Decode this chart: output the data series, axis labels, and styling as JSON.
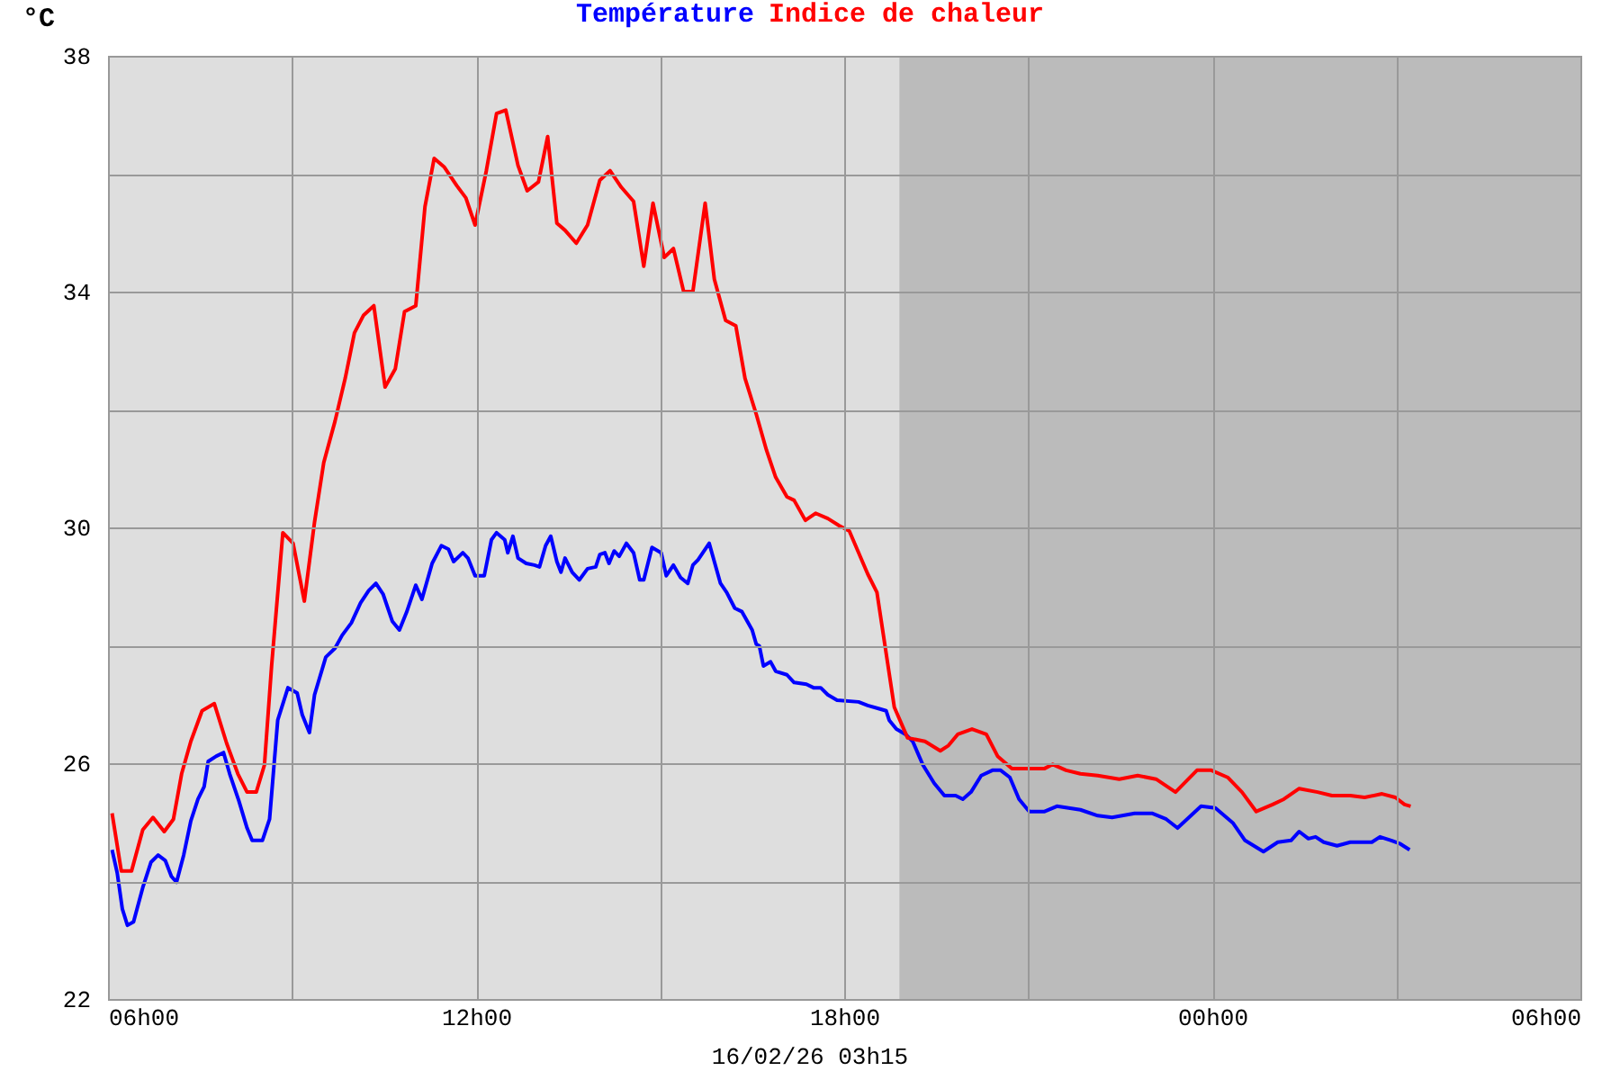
{
  "chart_data": {
    "type": "line",
    "ylabel": "°C",
    "annotations": [
      "16/02/26 03h15"
    ],
    "legend": "top",
    "grid": true,
    "line_style": "solid",
    "marker": "none",
    "xlim": [
      "--02-15T06:00",
      "--02-16T06:00"
    ],
    "xticks": [
      {
        "value": "--02-15T06:00",
        "label": "06h00"
      },
      {
        "value": "--02-15T09:00",
        "label": null
      },
      {
        "value": "--02-15T12:00",
        "label": "12h00"
      },
      {
        "value": "--02-15T15:00",
        "label": null
      },
      {
        "value": "--02-15T18:00",
        "label": "18h00"
      },
      {
        "value": "--02-15T21:00",
        "label": null
      },
      {
        "value": "--02-16T00:00",
        "label": "00h00"
      },
      {
        "value": "--02-16T03:00",
        "label": null
      },
      {
        "value": "--02-16T06:00",
        "label": "06h00"
      }
    ],
    "ylim": [
      22,
      38
    ],
    "yticks": [
      22,
      {
        "value": 24,
        "label": null
      },
      26,
      {
        "value": 28,
        "label": null
      },
      30,
      {
        "value": 32,
        "label": null
      },
      34,
      {
        "value": 36,
        "label": null
      },
      38
    ],
    "bands": [
      {
        "axis": "x",
        "from": "--02-15T18:54",
        "to": "--02-16T06:00",
        "color": "#bbbbbb"
      }
    ],
    "series": [
      {
        "name": "Température",
        "color": "#0000ff",
        "x": [
          "--02-15T06:04",
          "--02-15T06:09",
          "--02-15T06:14",
          "--02-15T06:19",
          "--02-15T06:25",
          "--02-15T06:34",
          "--02-15T06:42",
          "--02-15T06:49",
          "--02-15T06:56",
          "--02-15T07:02",
          "--02-15T07:07",
          "--02-15T07:14",
          "--02-15T07:21",
          "--02-15T07:28",
          "--02-15T07:34",
          "--02-15T07:38",
          "--02-15T07:46",
          "--02-15T07:53",
          "--02-15T07:59",
          "--02-15T08:08",
          "--02-15T08:16",
          "--02-15T08:21",
          "--02-15T08:31",
          "--02-15T08:38",
          "--02-15T08:46",
          "--02-15T08:56",
          "--02-15T09:05",
          "--02-15T09:10",
          "--02-15T09:17",
          "--02-15T09:22",
          "--02-15T09:33",
          "--02-15T09:42",
          "--02-15T09:49",
          "--02-15T09:58",
          "--02-15T10:07",
          "--02-15T10:15",
          "--02-15T10:22",
          "--02-15T10:29",
          "--02-15T10:38",
          "--02-15T10:45",
          "--02-15T10:52",
          "--02-15T11:01",
          "--02-15T11:07",
          "--02-15T11:17",
          "--02-15T11:26",
          "--02-15T11:33",
          "--02-15T11:38",
          "--02-15T11:47",
          "--02-15T11:52",
          "--02-15T11:59",
          "--02-15T12:08",
          "--02-15T12:15",
          "--02-15T12:20",
          "--02-15T12:28",
          "--02-15T12:31",
          "--02-15T12:36",
          "--02-15T12:41",
          "--02-15T12:49",
          "--02-15T12:57",
          "--02-15T13:02",
          "--02-15T13:08",
          "--02-15T13:13",
          "--02-15T13:19",
          "--02-15T13:23",
          "--02-15T13:27",
          "--02-15T13:34",
          "--02-15T13:41",
          "--02-15T13:49",
          "--02-15T13:57",
          "--02-15T14:01",
          "--02-15T14:06",
          "--02-15T14:10",
          "--02-15T14:15",
          "--02-15T14:20",
          "--02-15T14:27",
          "--02-15T14:34",
          "--02-15T14:40",
          "--02-15T14:44",
          "--02-15T14:52",
          "--02-15T15:01",
          "--02-15T15:06",
          "--02-15T15:13",
          "--02-15T15:20",
          "--02-15T15:27",
          "--02-15T15:32",
          "--02-15T15:37",
          "--02-15T15:48",
          "--02-15T15:59",
          "--02-15T16:05",
          "--02-15T16:13",
          "--02-15T16:20",
          "--02-15T16:30",
          "--02-15T16:34",
          "--02-15T16:37",
          "--02-15T16:41",
          "--02-15T16:48",
          "--02-15T16:53",
          "--02-15T17:04",
          "--02-15T17:11",
          "--02-15T17:23",
          "--02-15T17:30",
          "--02-15T17:37",
          "--02-15T17:44",
          "--02-15T17:53",
          "--02-15T18:14",
          "--02-15T18:23",
          "--02-15T18:35",
          "--02-15T18:41",
          "--02-15T18:44",
          "--02-15T18:51",
          "--02-15T19:00",
          "--02-15T19:07",
          "--02-15T19:17",
          "--02-15T19:28",
          "--02-15T19:38",
          "--02-15T19:49",
          "--02-15T19:56",
          "--02-15T20:04",
          "--02-15T20:14",
          "--02-15T20:25",
          "--02-15T20:33",
          "--02-15T20:42",
          "--02-15T20:51",
          "--02-15T21:01",
          "--02-15T21:16",
          "--02-15T21:28",
          "--02-15T21:51",
          "--02-15T22:08",
          "--02-15T22:22",
          "--02-15T22:44",
          "--02-15T23:01",
          "--02-15T23:15",
          "--02-15T23:26",
          "--02-15T23:49",
          "--02-16T00:03",
          "--02-16T00:20",
          "--02-16T00:32",
          "--02-16T00:50",
          "--02-16T01:04",
          "--02-16T01:17",
          "--02-16T01:25",
          "--02-16T01:34",
          "--02-16T01:41",
          "--02-16T01:49",
          "--02-16T02:02",
          "--02-16T02:15",
          "--02-16T02:36",
          "--02-16T02:44",
          "--02-16T02:55",
          "--02-16T03:04",
          "--02-16T03:13"
        ],
        "values": [
          24.53,
          24.14,
          23.53,
          23.25,
          23.31,
          23.89,
          24.32,
          24.44,
          24.35,
          24.08,
          23.98,
          24.44,
          25.02,
          25.39,
          25.6,
          26.03,
          26.12,
          26.18,
          25.82,
          25.36,
          24.9,
          24.69,
          24.69,
          25.05,
          26.73,
          27.28,
          27.19,
          26.82,
          26.52,
          27.16,
          27.8,
          27.95,
          28.17,
          28.38,
          28.72,
          28.93,
          29.05,
          28.87,
          28.41,
          28.26,
          28.56,
          29.02,
          28.78,
          29.39,
          29.69,
          29.63,
          29.42,
          29.57,
          29.48,
          29.18,
          29.18,
          29.79,
          29.91,
          29.79,
          29.57,
          29.85,
          29.48,
          29.39,
          29.36,
          29.33,
          29.69,
          29.85,
          29.42,
          29.24,
          29.48,
          29.24,
          29.11,
          29.3,
          29.33,
          29.54,
          29.57,
          29.39,
          29.6,
          29.51,
          29.73,
          29.57,
          29.11,
          29.11,
          29.66,
          29.57,
          29.18,
          29.36,
          29.15,
          29.05,
          29.36,
          29.45,
          29.73,
          29.05,
          28.9,
          28.63,
          28.57,
          28.26,
          28.02,
          27.99,
          27.65,
          27.72,
          27.56,
          27.5,
          27.37,
          27.34,
          27.28,
          27.28,
          27.16,
          27.07,
          27.04,
          26.98,
          26.92,
          26.89,
          26.73,
          26.58,
          26.49,
          26.37,
          25.97,
          25.66,
          25.45,
          25.45,
          25.39,
          25.51,
          25.79,
          25.88,
          25.88,
          25.76,
          25.39,
          25.18,
          25.18,
          25.27,
          25.21,
          25.11,
          25.08,
          25.15,
          25.15,
          25.05,
          24.9,
          25.27,
          25.24,
          24.99,
          24.69,
          24.5,
          24.66,
          24.69,
          24.84,
          24.72,
          24.75,
          24.66,
          24.6,
          24.66,
          24.66,
          24.75,
          24.69,
          24.63,
          24.53
        ]
      },
      {
        "name": "Indice de chaleur",
        "color": "#ff0000",
        "x": [
          "--02-15T06:04",
          "--02-15T06:13",
          "--02-15T06:23",
          "--02-15T06:34",
          "--02-15T06:44",
          "--02-15T06:55",
          "--02-15T07:04",
          "--02-15T07:12",
          "--02-15T07:21",
          "--02-15T07:32",
          "--02-15T07:44",
          "--02-15T07:56",
          "--02-15T08:07",
          "--02-15T08:16",
          "--02-15T08:25",
          "--02-15T08:33",
          "--02-15T08:40",
          "--02-15T08:51",
          "--02-15T09:01",
          "--02-15T09:12",
          "--02-15T09:22",
          "--02-15T09:31",
          "--02-15T09:42",
          "--02-15T09:52",
          "--02-15T10:01",
          "--02-15T10:10",
          "--02-15T10:20",
          "--02-15T10:31",
          "--02-15T10:41",
          "--02-15T10:50",
          "--02-15T11:01",
          "--02-15T11:10",
          "--02-15T11:19",
          "--02-15T11:29",
          "--02-15T11:41",
          "--02-15T11:50",
          "--02-15T11:59",
          "--02-15T12:10",
          "--02-15T12:20",
          "--02-15T12:29",
          "--02-15T12:41",
          "--02-15T12:50",
          "--02-15T13:01",
          "--02-15T13:10",
          "--02-15T13:19",
          "--02-15T13:27",
          "--02-15T13:38",
          "--02-15T13:49",
          "--02-15T14:01",
          "--02-15T14:11",
          "--02-15T14:22",
          "--02-15T14:34",
          "--02-15T14:44",
          "--02-15T14:53",
          "--02-15T15:04",
          "--02-15T15:13",
          "--02-15T15:23",
          "--02-15T15:32",
          "--02-15T15:44",
          "--02-15T15:53",
          "--02-15T16:04",
          "--02-15T16:14",
          "--02-15T16:23",
          "--02-15T16:34",
          "--02-15T16:44",
          "--02-15T16:53",
          "--02-15T17:04",
          "--02-15T17:11",
          "--02-15T17:22",
          "--02-15T17:32",
          "--02-15T17:44",
          "--02-15T17:55",
          "--02-15T18:05",
          "--02-15T18:23",
          "--02-15T18:32",
          "--02-15T18:49",
          "--02-15T19:02",
          "--02-15T19:19",
          "--02-15T19:34",
          "--02-15T19:42",
          "--02-15T19:51",
          "--02-15T20:05",
          "--02-15T20:19",
          "--02-15T20:30",
          "--02-15T20:44",
          "--02-15T20:55",
          "--02-15T21:16",
          "--02-15T21:24",
          "--02-15T21:37",
          "--02-15T21:51",
          "--02-15T22:08",
          "--02-15T22:29",
          "--02-15T22:47",
          "--02-15T23:05",
          "--02-15T23:24",
          "--02-15T23:45",
          "--02-15T23:59",
          "--02-16T00:15",
          "--02-16T00:29",
          "--02-16T00:43",
          "--02-16T00:59",
          "--02-16T01:10",
          "--02-16T01:25",
          "--02-16T01:43",
          "--02-16T01:57",
          "--02-16T02:15",
          "--02-16T02:29",
          "--02-16T02:46",
          "--02-16T02:59",
          "--02-16T03:08",
          "--02-16T03:14"
        ],
        "values": [
          25.15,
          24.17,
          24.17,
          24.87,
          25.08,
          24.84,
          25.05,
          25.82,
          26.37,
          26.89,
          27.01,
          26.34,
          25.82,
          25.51,
          25.51,
          25.97,
          27.65,
          29.91,
          29.73,
          28.75,
          30.09,
          31.1,
          31.8,
          32.53,
          33.3,
          33.6,
          33.76,
          32.38,
          32.69,
          33.66,
          33.76,
          35.44,
          36.26,
          36.11,
          35.8,
          35.59,
          35.13,
          36.05,
          37.02,
          37.08,
          36.14,
          35.71,
          35.86,
          36.63,
          35.16,
          35.04,
          34.82,
          35.13,
          35.89,
          36.05,
          35.77,
          35.53,
          34.43,
          35.5,
          34.58,
          34.73,
          34.0,
          34.0,
          35.5,
          34.21,
          33.51,
          33.42,
          32.53,
          31.92,
          31.31,
          30.85,
          30.52,
          30.46,
          30.12,
          30.24,
          30.15,
          30.03,
          29.94,
          29.21,
          28.9,
          26.95,
          26.43,
          26.37,
          26.21,
          26.3,
          26.49,
          26.58,
          26.49,
          26.12,
          25.91,
          25.91,
          25.91,
          25.98,
          25.88,
          25.82,
          25.79,
          25.73,
          25.79,
          25.73,
          25.51,
          25.88,
          25.88,
          25.76,
          25.51,
          25.18,
          25.3,
          25.39,
          25.57,
          25.51,
          25.45,
          25.45,
          25.42,
          25.48,
          25.42,
          25.3,
          25.27
        ]
      }
    ]
  }
}
